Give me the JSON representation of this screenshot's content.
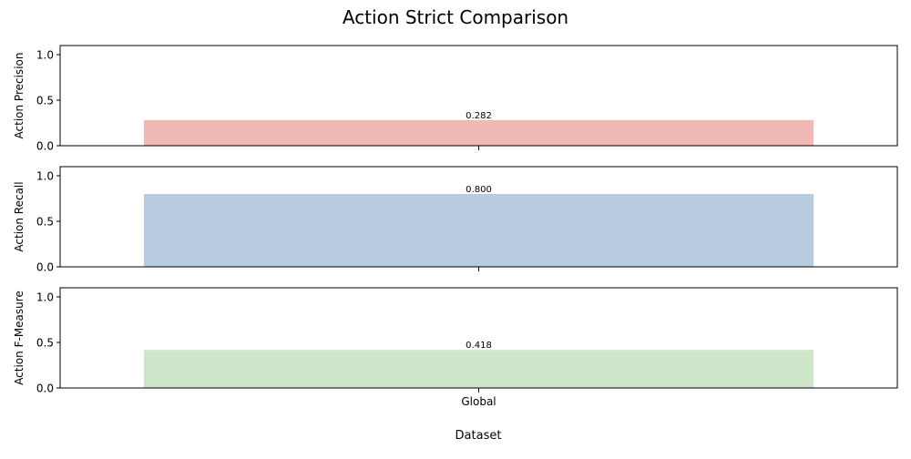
{
  "chart_data": {
    "type": "bar",
    "title": "Action Strict Comparison",
    "xlabel": "Dataset",
    "categories": [
      "Global"
    ],
    "panels": [
      {
        "ylabel": "Action Precision",
        "values": [
          0.282
        ],
        "value_labels": [
          "0.282"
        ],
        "ylim": [
          0,
          1.1
        ],
        "yticks": [
          "0.0",
          "0.5",
          "1.0"
        ],
        "color": "#f1b9b6"
      },
      {
        "ylabel": "Action Recall",
        "values": [
          0.8
        ],
        "value_labels": [
          "0.800"
        ],
        "ylim": [
          0,
          1.1
        ],
        "yticks": [
          "0.0",
          "0.5",
          "1.0"
        ],
        "color": "#b9cbde"
      },
      {
        "ylabel": "Action F-Measure",
        "values": [
          0.418
        ],
        "value_labels": [
          "0.418"
        ],
        "ylim": [
          0,
          1.1
        ],
        "yticks": [
          "0.0",
          "0.5",
          "1.0"
        ],
        "color": "#cfe6ca"
      }
    ],
    "grid": false,
    "legend": "none"
  }
}
